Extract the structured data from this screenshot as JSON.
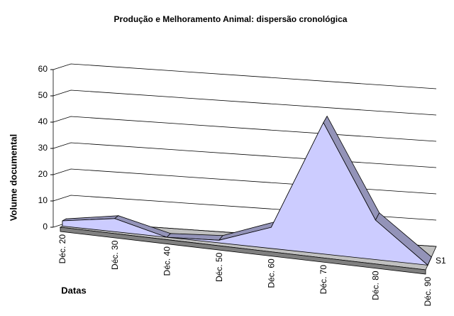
{
  "chart_data": {
    "type": "area3d",
    "title": "Produção e Melhoramento Animal: dispersão cronológica",
    "y_label": "Volume documental",
    "x_label": "Datas",
    "categories": [
      "Déc. 20",
      "Déc. 30",
      "Déc. 40",
      "Déc. 50",
      "Déc. 60",
      "Déc. 70",
      "Déc. 80",
      "Déc. 90"
    ],
    "series": [
      {
        "name": "S1",
        "color": "#ccccff",
        "values": [
          2,
          5,
          0,
          1,
          8,
          50,
          15,
          0
        ]
      }
    ],
    "ylim": [
      0,
      60
    ],
    "yticks": [
      0,
      10,
      20,
      30,
      40,
      50,
      60
    ],
    "grid": true
  }
}
